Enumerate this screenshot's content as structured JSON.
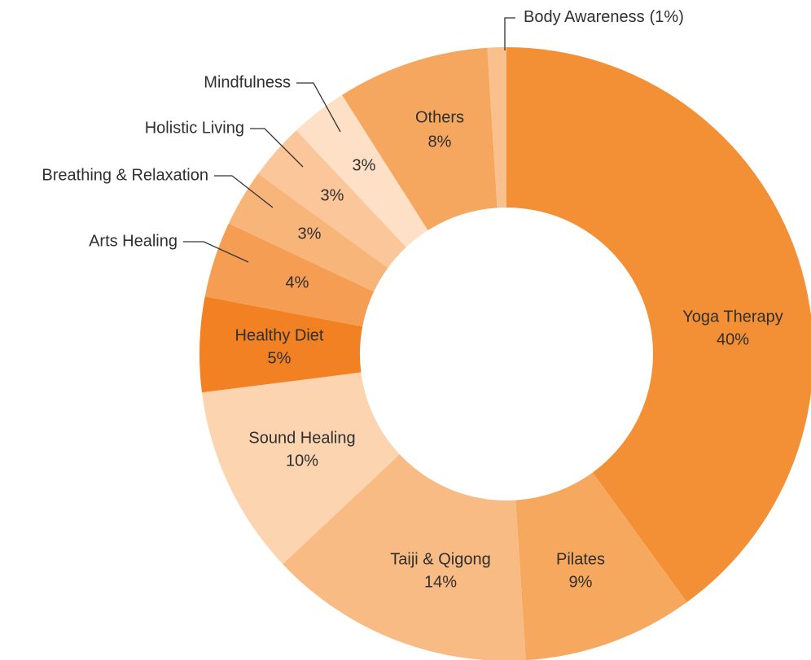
{
  "chart_data": {
    "type": "donut",
    "categories": [
      "Yoga Therapy",
      "Pilates",
      "Taiji & Qigong",
      "Sound Healing",
      "Healthy Diet",
      "Arts Healing",
      "Breathing & Relaxation",
      "Holistic Living",
      "Mindfulness",
      "Others",
      "Body Awareness"
    ],
    "values": [
      40,
      9,
      14,
      10,
      5,
      4,
      3,
      3,
      3,
      8,
      1
    ],
    "value_labels": [
      "40%",
      "9%",
      "14%",
      "10%",
      "5%",
      "4%",
      "3%",
      "3%",
      "3%",
      "8%",
      "(1%)"
    ],
    "colors": [
      "#f39035",
      "#f5a85e",
      "#f8bb84",
      "#fcd4b0",
      "#f28123",
      "#f59d52",
      "#f8b57a",
      "#fac69a",
      "#fde0c6",
      "#f5a75f",
      "#f9c08c"
    ]
  }
}
